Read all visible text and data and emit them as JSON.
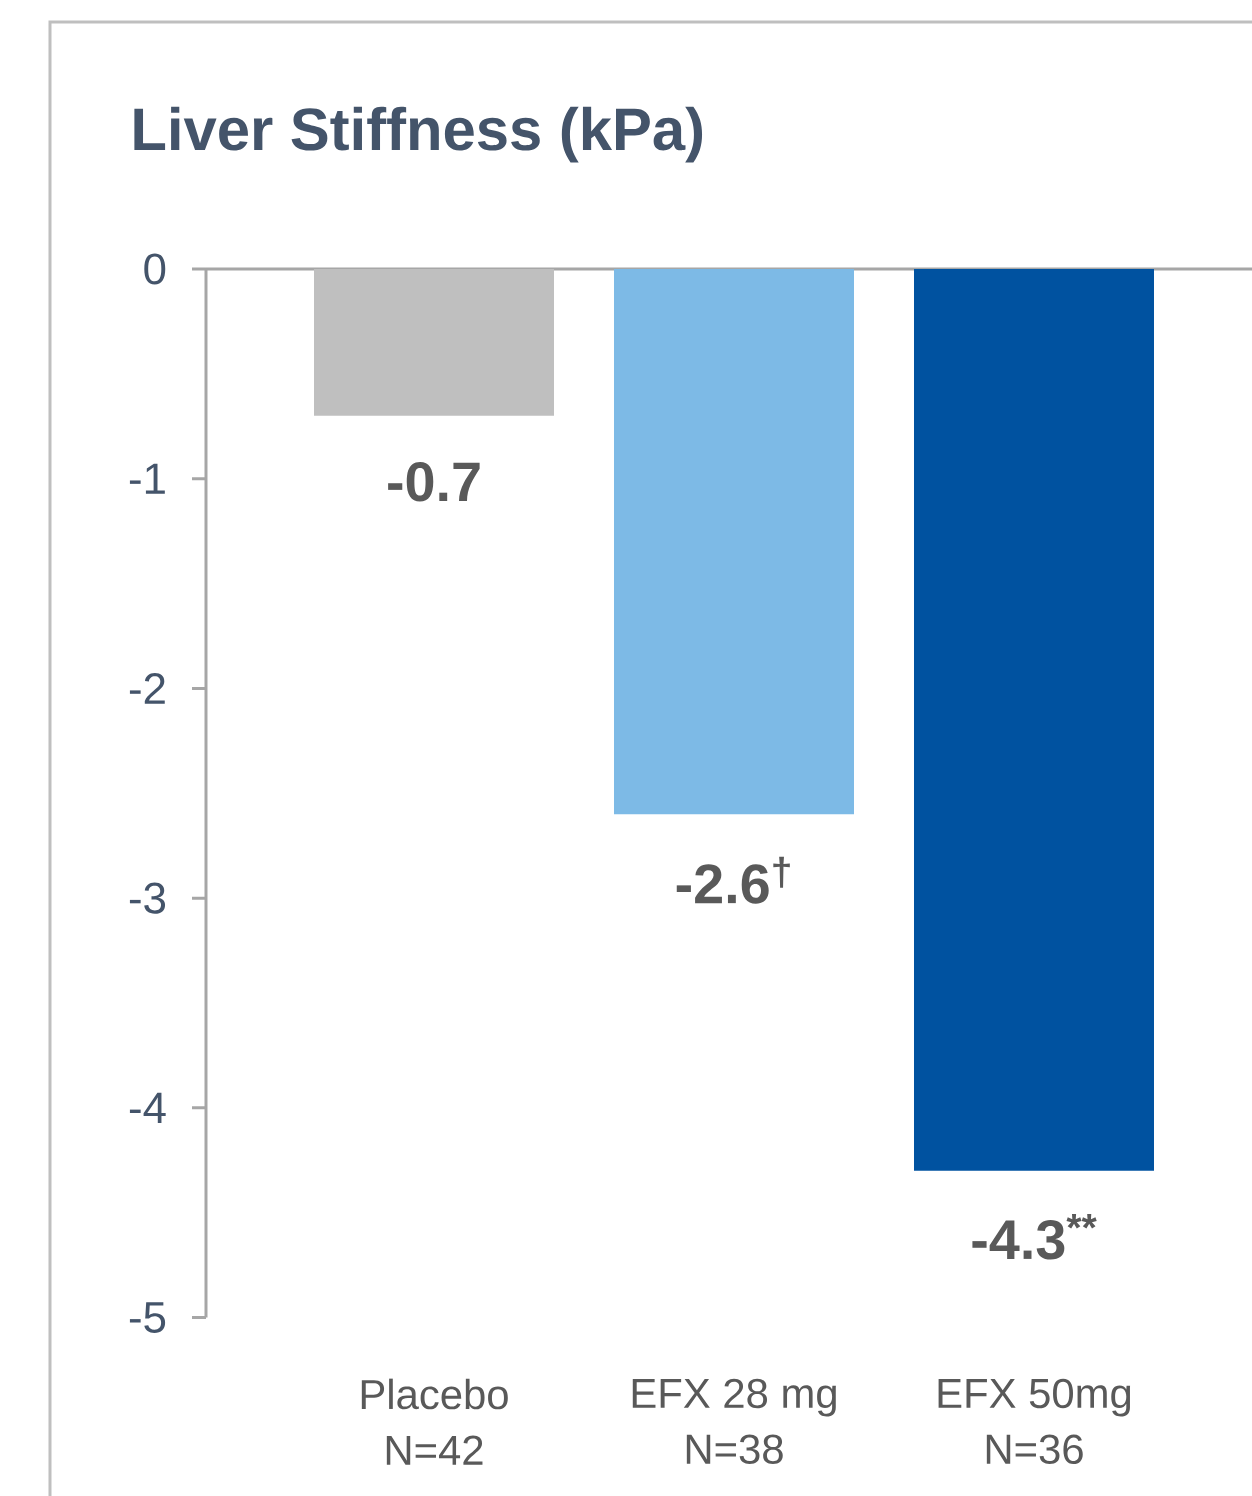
{
  "chart_data": {
    "type": "bar",
    "title": "Liver Stiffness (kPa)",
    "categories": [
      "Placebo N=42",
      "EFX 28 mg N=38",
      "EFX 50mg N=36"
    ],
    "values": [
      -0.7,
      -2.6,
      -4.3
    ],
    "colors": [
      "#bfbfbf",
      "#7dbae6",
      "#0052a0"
    ],
    "value_labels": [
      "-0.7",
      "-2.6$^{†}$",
      "-4.3$^{**}$"
    ],
    "ylim": [
      -5,
      0
    ],
    "yticks": [
      -5,
      -4,
      -3,
      -2,
      -1,
      0
    ]
  }
}
